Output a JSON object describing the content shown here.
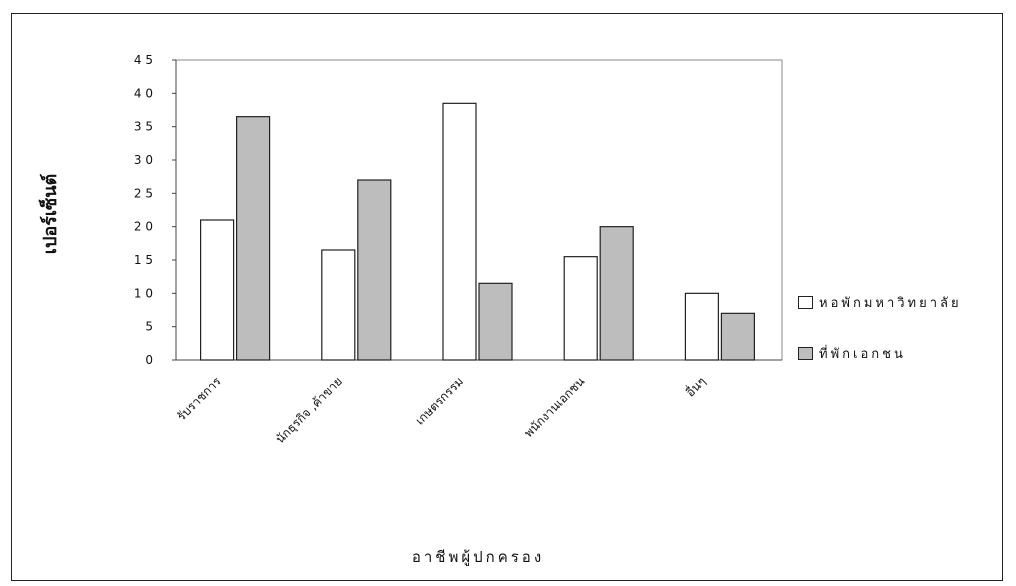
{
  "chart_data": {
    "type": "bar",
    "categories": [
      "รับราชการ",
      "นักธุรกิจ ,ค้าขาย",
      "เกษตรกรรม",
      "พนักงานเอกชน",
      "อื่นๆ"
    ],
    "series": [
      {
        "name": "หอพักมหาวิทยาลัย",
        "values": [
          21,
          16.5,
          38.5,
          15.5,
          10
        ],
        "color": "#ffffff"
      },
      {
        "name": "ที่พักเอกชน",
        "values": [
          36.5,
          27,
          11.5,
          20,
          7
        ],
        "color": "#bdbdbd"
      }
    ],
    "y_ticks": [
      "0",
      "5",
      "1 0",
      "1 5",
      "2 0",
      "2 5",
      "3 0",
      "3 5",
      "4 0",
      "4 5"
    ],
    "ylim": [
      0,
      45
    ],
    "xlabel": "อาชีพผู้ปกครอง",
    "ylabel": "เปอร์เซ็นต์",
    "legend_position": "right",
    "grid": false
  }
}
